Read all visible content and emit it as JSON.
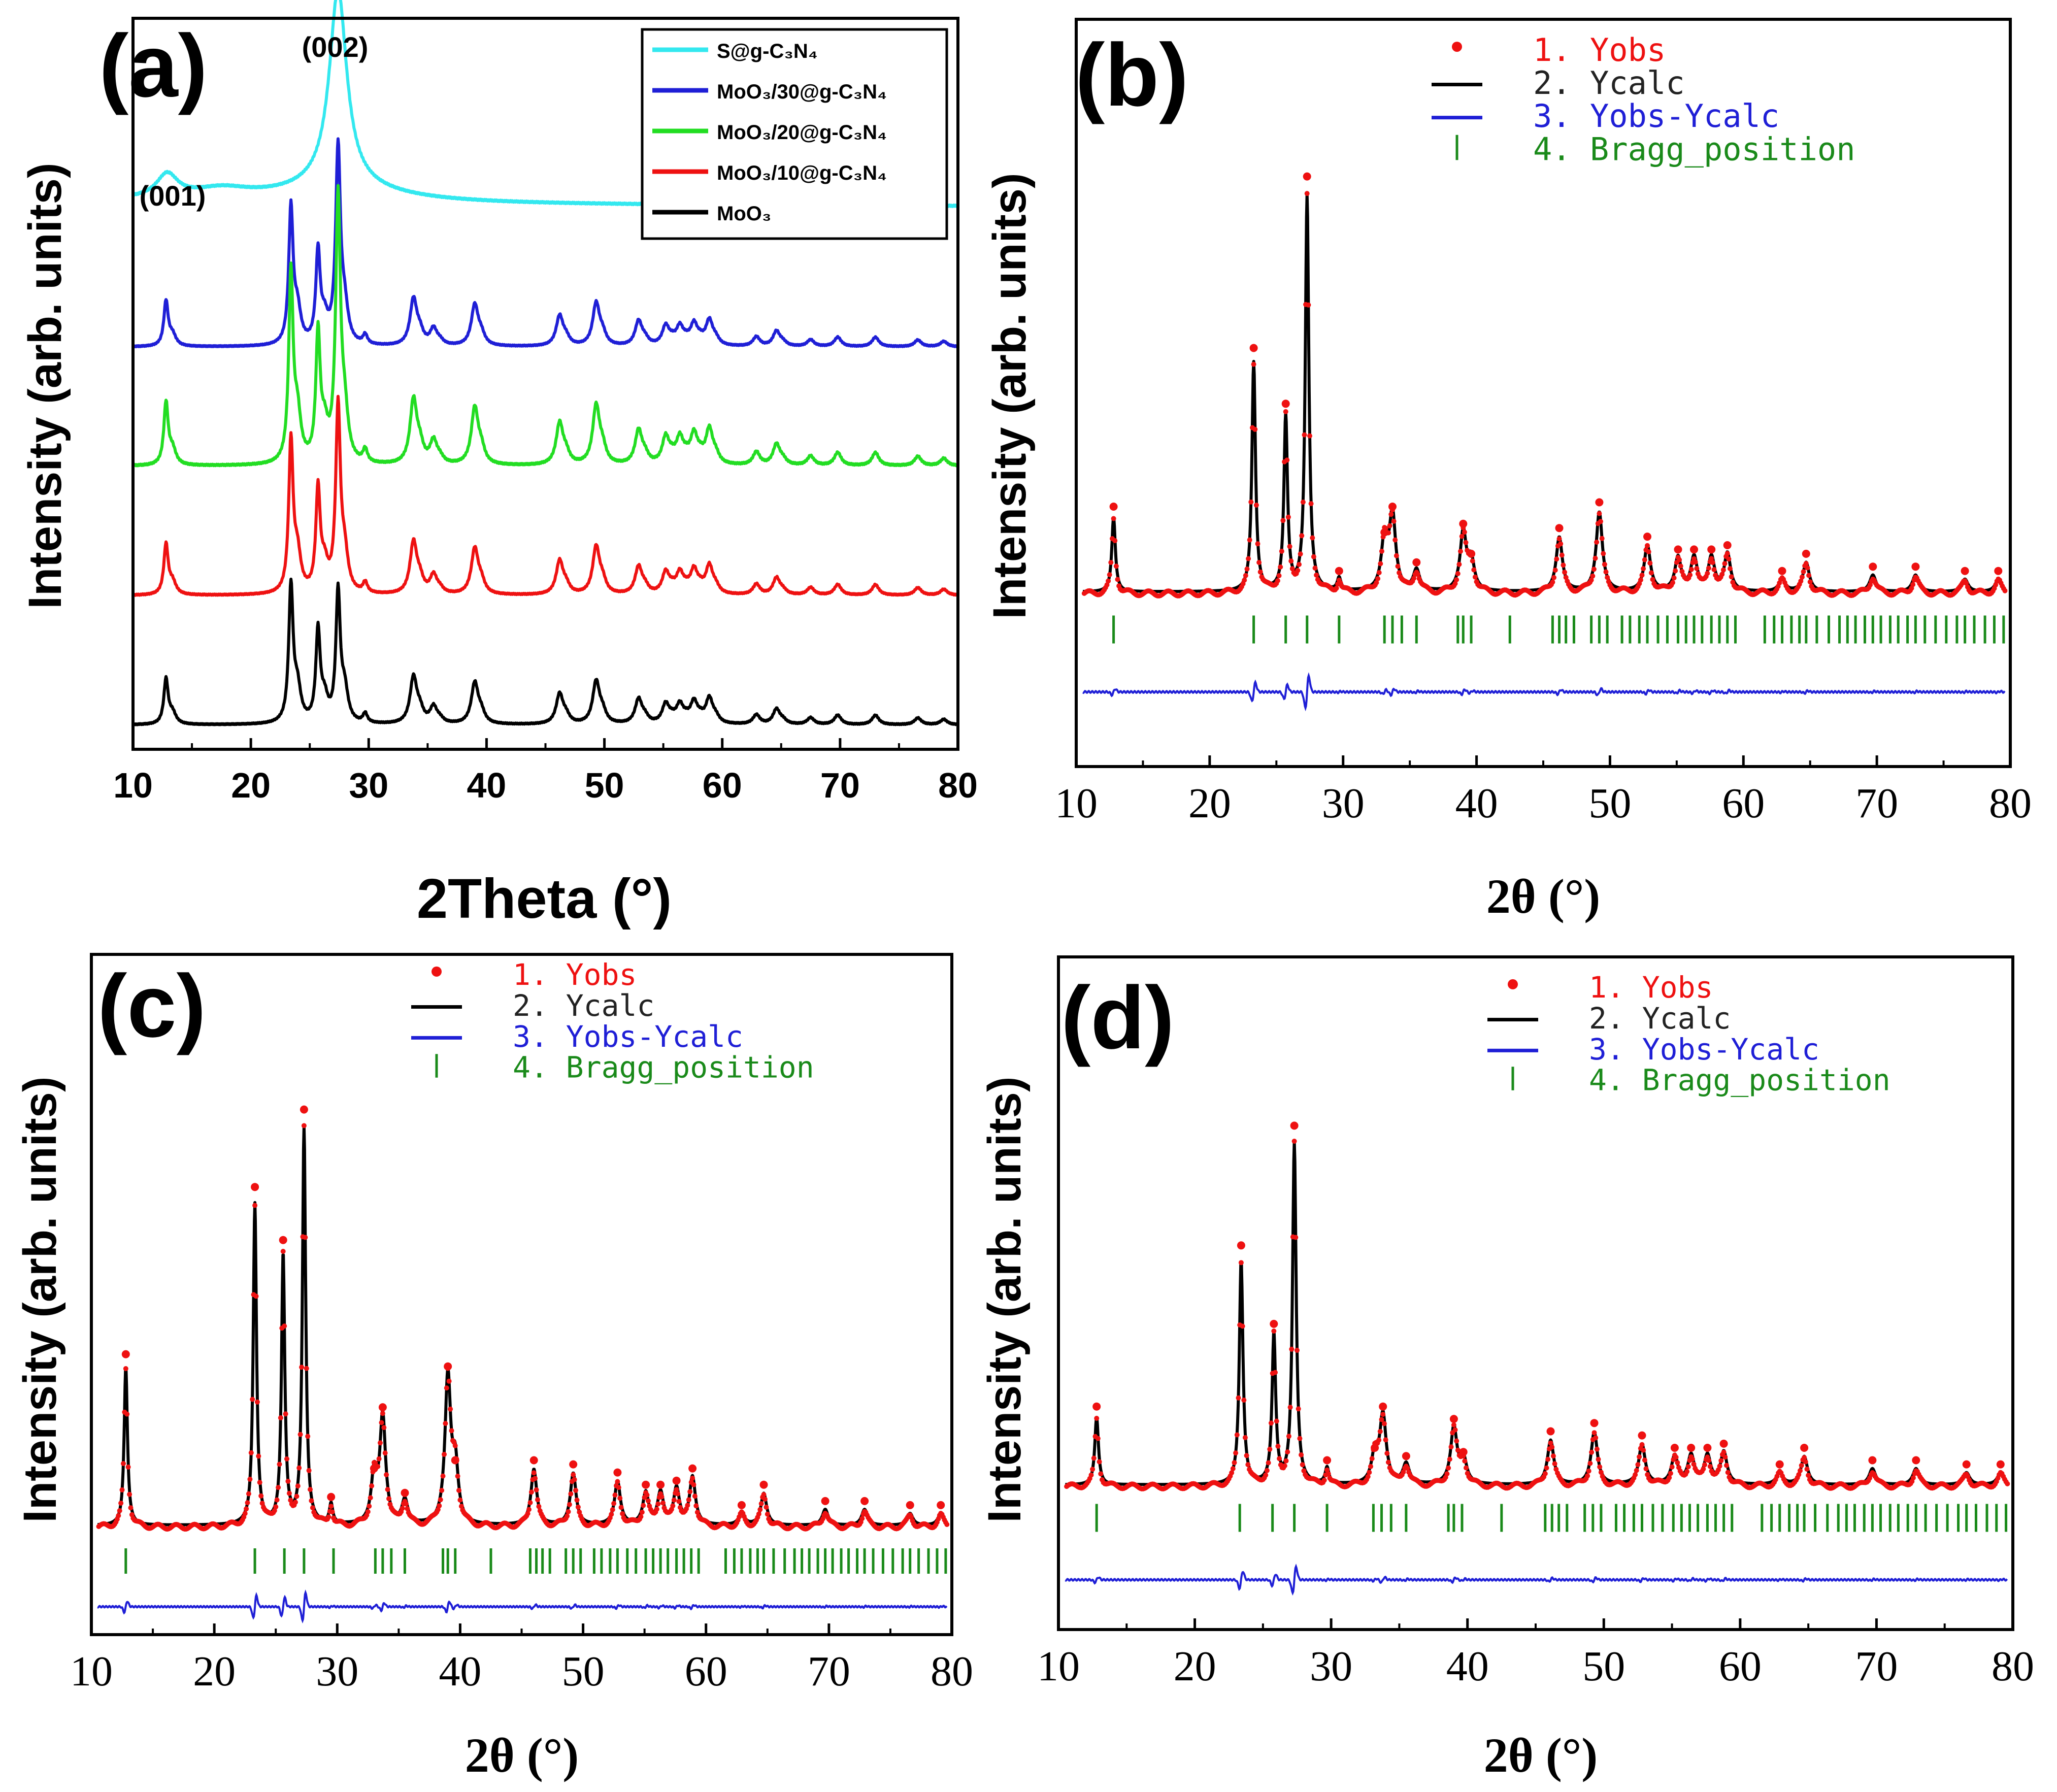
{
  "chart_data": [
    {
      "panel": "(a)",
      "type": "line",
      "xlabel": "2Theta (°)",
      "ylabel": "Intensity (arb. units)",
      "xlim": [
        10,
        80
      ],
      "xticks": [
        10,
        20,
        30,
        40,
        50,
        60,
        70,
        80
      ],
      "annotations": [
        {
          "text": "(001)",
          "x": 13
        },
        {
          "text": "(002)",
          "x": 27.4
        }
      ],
      "legend_position": "top-right",
      "peak_positions": [
        12.8,
        23.4,
        25.7,
        27.4,
        29.7,
        33.8,
        35.5,
        39.0,
        46.2,
        49.3,
        52.9,
        55.2,
        56.4,
        57.6,
        58.9,
        62.9,
        64.6,
        67.5,
        69.8,
        73.0,
        76.6,
        78.8
      ],
      "peak_heights": [
        0.33,
        1.0,
        0.67,
        0.95,
        0.07,
        0.34,
        0.12,
        0.3,
        0.22,
        0.31,
        0.18,
        0.14,
        0.13,
        0.15,
        0.18,
        0.07,
        0.11,
        0.05,
        0.07,
        0.07,
        0.05,
        0.04
      ],
      "series": [
        {
          "name": "S@g-C₃N₄",
          "color": "#33e8ef",
          "kind": "gcn",
          "baseline": 1.0,
          "scale": 0.38
        },
        {
          "name": "MoO₃/30@g-C₃N₄",
          "color": "#1f1fd6",
          "kind": "moo3",
          "baseline": 0.73,
          "scale": 0.26,
          "gcn_mix": 0.55
        },
        {
          "name": "MoO₃/20@g-C₃N₄",
          "color": "#22dd22",
          "kind": "moo3",
          "baseline": 0.5,
          "scale": 0.36,
          "gcn_mix": 0.5
        },
        {
          "name": "MoO₃/10@g-C₃N₄",
          "color": "#ee1111",
          "kind": "moo3",
          "baseline": 0.25,
          "scale": 0.29,
          "gcn_mix": 0.3
        },
        {
          "name": "MoO₃",
          "color": "#000000",
          "kind": "moo3",
          "baseline": 0.0,
          "scale": 0.26,
          "gcn_mix": 0.0
        }
      ]
    },
    {
      "panel": "(b)",
      "type": "line",
      "xlabel": "2θ (°)",
      "ylabel": "Intensity (arb. units)",
      "xlim": [
        10,
        80
      ],
      "xticks": [
        10,
        20,
        30,
        40,
        50,
        60,
        70,
        80
      ],
      "legend": [
        "1. Yobs",
        "2. Ycalc",
        "3. Yobs-Ycalc",
        "4. Bragg_position"
      ],
      "peaks": [
        {
          "x": 12.8,
          "h": 0.18
        },
        {
          "x": 23.3,
          "h": 0.55
        },
        {
          "x": 25.7,
          "h": 0.42
        },
        {
          "x": 27.3,
          "h": 0.95
        },
        {
          "x": 29.7,
          "h": 0.03
        },
        {
          "x": 33.1,
          "h": 0.12
        },
        {
          "x": 33.7,
          "h": 0.18
        },
        {
          "x": 35.5,
          "h": 0.05
        },
        {
          "x": 39.0,
          "h": 0.14
        },
        {
          "x": 39.6,
          "h": 0.07
        },
        {
          "x": 46.2,
          "h": 0.13
        },
        {
          "x": 49.2,
          "h": 0.19
        },
        {
          "x": 52.8,
          "h": 0.11
        },
        {
          "x": 55.1,
          "h": 0.08
        },
        {
          "x": 56.3,
          "h": 0.08
        },
        {
          "x": 57.6,
          "h": 0.08
        },
        {
          "x": 58.8,
          "h": 0.09
        },
        {
          "x": 62.9,
          "h": 0.03
        },
        {
          "x": 64.7,
          "h": 0.07
        },
        {
          "x": 69.7,
          "h": 0.04
        },
        {
          "x": 72.9,
          "h": 0.04
        },
        {
          "x": 76.6,
          "h": 0.03
        },
        {
          "x": 79.1,
          "h": 0.03
        }
      ]
    },
    {
      "panel": "(c)",
      "type": "line",
      "xlabel": "2θ (°)",
      "ylabel": "Intensity (arb. units)",
      "xlim": [
        10,
        80
      ],
      "xticks": [
        10,
        20,
        30,
        40,
        50,
        60,
        70,
        80
      ],
      "legend": [
        "1. Yobs",
        "2. Ycalc",
        "3. Yobs-Ycalc",
        "4. Bragg_position"
      ],
      "peaks": [
        {
          "x": 12.8,
          "h": 0.4
        },
        {
          "x": 23.3,
          "h": 0.81
        },
        {
          "x": 25.6,
          "h": 0.68
        },
        {
          "x": 27.3,
          "h": 1.0
        },
        {
          "x": 29.5,
          "h": 0.05
        },
        {
          "x": 33.0,
          "h": 0.12
        },
        {
          "x": 33.7,
          "h": 0.27
        },
        {
          "x": 35.5,
          "h": 0.06
        },
        {
          "x": 39.0,
          "h": 0.37
        },
        {
          "x": 39.6,
          "h": 0.14
        },
        {
          "x": 46.0,
          "h": 0.14
        },
        {
          "x": 49.2,
          "h": 0.13
        },
        {
          "x": 52.8,
          "h": 0.11
        },
        {
          "x": 55.1,
          "h": 0.08
        },
        {
          "x": 56.3,
          "h": 0.08
        },
        {
          "x": 57.6,
          "h": 0.09
        },
        {
          "x": 58.9,
          "h": 0.12
        },
        {
          "x": 62.9,
          "h": 0.03
        },
        {
          "x": 64.7,
          "h": 0.08
        },
        {
          "x": 69.7,
          "h": 0.04
        },
        {
          "x": 72.9,
          "h": 0.04
        },
        {
          "x": 76.6,
          "h": 0.03
        },
        {
          "x": 79.1,
          "h": 0.03
        }
      ]
    },
    {
      "panel": "(d)",
      "type": "line",
      "xlabel": "2θ (°)",
      "ylabel": "Intensity (arb. units)",
      "xlim": [
        10,
        80
      ],
      "xticks": [
        10,
        20,
        30,
        40,
        50,
        60,
        70,
        80
      ],
      "legend": [
        "1. Yobs",
        "2. Ycalc",
        "3. Yobs-Ycalc",
        "4. Bragg_position"
      ],
      "peaks": [
        {
          "x": 12.8,
          "h": 0.17
        },
        {
          "x": 23.4,
          "h": 0.56
        },
        {
          "x": 25.8,
          "h": 0.37
        },
        {
          "x": 27.3,
          "h": 0.85
        },
        {
          "x": 29.7,
          "h": 0.04
        },
        {
          "x": 33.2,
          "h": 0.07
        },
        {
          "x": 33.8,
          "h": 0.17
        },
        {
          "x": 35.5,
          "h": 0.05
        },
        {
          "x": 39.0,
          "h": 0.14
        },
        {
          "x": 39.7,
          "h": 0.06
        },
        {
          "x": 46.1,
          "h": 0.11
        },
        {
          "x": 49.3,
          "h": 0.13
        },
        {
          "x": 52.8,
          "h": 0.1
        },
        {
          "x": 55.2,
          "h": 0.07
        },
        {
          "x": 56.4,
          "h": 0.07
        },
        {
          "x": 57.6,
          "h": 0.07
        },
        {
          "x": 58.8,
          "h": 0.08
        },
        {
          "x": 62.9,
          "h": 0.03
        },
        {
          "x": 64.7,
          "h": 0.07
        },
        {
          "x": 69.7,
          "h": 0.04
        },
        {
          "x": 72.9,
          "h": 0.04
        },
        {
          "x": 76.6,
          "h": 0.03
        },
        {
          "x": 79.1,
          "h": 0.03
        }
      ]
    }
  ],
  "bragg_positions": [
    12.8,
    23.3,
    25.7,
    27.3,
    29.7,
    33.1,
    33.7,
    34.4,
    35.5,
    38.6,
    39.0,
    39.6,
    42.5,
    45.7,
    46.2,
    46.7,
    47.3,
    48.6,
    49.2,
    49.8,
    50.9,
    51.5,
    52.2,
    52.8,
    53.6,
    54.3,
    55.1,
    55.7,
    56.3,
    56.9,
    57.6,
    58.2,
    58.8,
    59.4,
    61.6,
    62.3,
    62.9,
    63.6,
    64.2,
    64.7,
    65.5,
    66.4,
    67.2,
    67.8,
    68.4,
    69.1,
    69.7,
    70.3,
    71.0,
    71.6,
    72.3,
    72.9,
    73.6,
    74.4,
    75.2,
    76.0,
    76.6,
    77.3,
    78.1,
    78.8,
    79.5
  ],
  "panel_colors": {
    "obs": "#ee1111",
    "calc": "#000000",
    "diff": "#1f1fd6",
    "bragg": "#1a8a1a"
  }
}
